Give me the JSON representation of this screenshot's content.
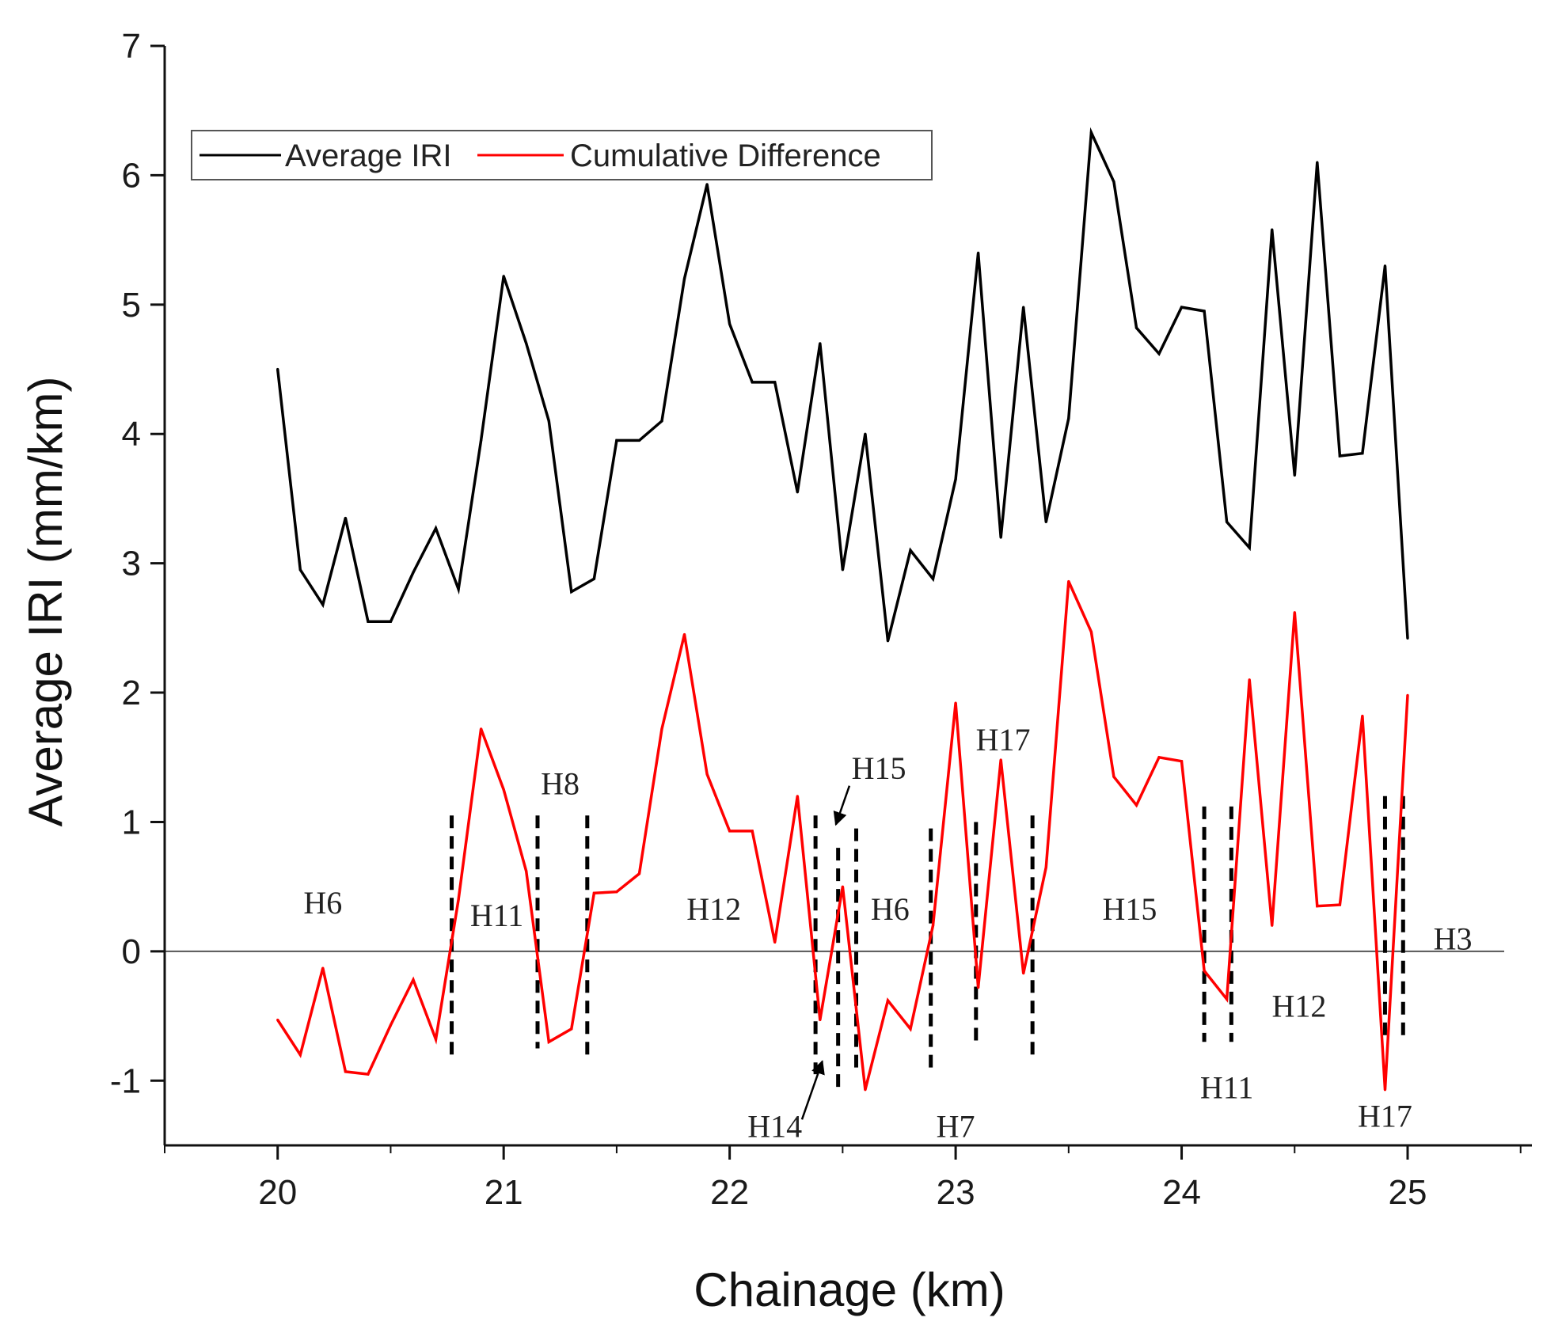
{
  "chart_data": {
    "type": "line",
    "xlabel": "Chainage (km)",
    "ylabel": "Average IRI (mm/km)",
    "xlim": [
      19.5,
      25.55
    ],
    "ylim": [
      -1.5,
      7
    ],
    "x_ticks": [
      20,
      21,
      22,
      23,
      24,
      25
    ],
    "y_ticks": [
      -1,
      0,
      1,
      2,
      3,
      4,
      5,
      6,
      7
    ],
    "legend_position": "top-left",
    "zero_line": true,
    "series": [
      {
        "name": "Average IRI",
        "color": "#000000",
        "x": [
          20.0,
          20.1,
          20.2,
          20.3,
          20.4,
          20.5,
          20.6,
          20.7,
          20.8,
          20.9,
          21.0,
          21.1,
          21.2,
          21.3,
          21.4,
          21.5,
          21.6,
          21.7,
          21.8,
          21.9,
          22.0,
          22.1,
          22.2,
          22.3,
          22.4,
          22.5,
          22.6,
          22.7,
          22.8,
          22.9,
          23.0,
          23.1,
          23.2,
          23.3,
          23.4,
          23.5,
          23.6,
          23.7,
          23.8,
          23.9,
          24.0,
          24.1,
          24.2,
          24.3,
          24.4,
          24.5,
          24.6,
          24.7,
          24.8,
          24.9,
          25.0
        ],
        "y": [
          4.5,
          2.95,
          2.68,
          3.35,
          2.55,
          2.55,
          2.93,
          3.27,
          2.8,
          3.95,
          5.22,
          4.7,
          4.1,
          2.78,
          2.88,
          3.95,
          3.95,
          4.1,
          5.2,
          5.93,
          4.85,
          4.4,
          4.4,
          3.55,
          4.7,
          2.95,
          4.0,
          2.4,
          3.1,
          2.88,
          3.65,
          5.4,
          3.2,
          4.98,
          3.32,
          4.12,
          6.33,
          5.95,
          4.82,
          4.62,
          4.98,
          4.95,
          3.32,
          3.12,
          5.58,
          3.68,
          6.1,
          3.83,
          3.85,
          5.3,
          2.42
        ]
      },
      {
        "name": "Cumulative Difference",
        "color": "#ff0000",
        "x": [
          20.0,
          20.1,
          20.2,
          20.3,
          20.4,
          20.5,
          20.6,
          20.7,
          20.8,
          20.9,
          21.0,
          21.1,
          21.2,
          21.3,
          21.4,
          21.5,
          21.6,
          21.7,
          21.8,
          21.9,
          22.0,
          22.1,
          22.2,
          22.3,
          22.4,
          22.5,
          22.6,
          22.7,
          22.8,
          22.9,
          23.0,
          23.1,
          23.2,
          23.3,
          23.4,
          23.5,
          23.6,
          23.7,
          23.8,
          23.9,
          24.0,
          24.1,
          24.2,
          24.3,
          24.4,
          24.5,
          24.6,
          24.7,
          24.8,
          24.9,
          25.0
        ],
        "y": [
          -0.53,
          -0.8,
          -0.13,
          -0.93,
          -0.95,
          -0.57,
          -0.22,
          -0.68,
          0.4,
          1.72,
          1.25,
          0.62,
          -0.7,
          -0.6,
          0.45,
          0.46,
          0.6,
          1.72,
          2.45,
          1.37,
          0.93,
          0.93,
          0.07,
          1.2,
          -0.53,
          0.5,
          -1.07,
          -0.38,
          -0.6,
          0.2,
          1.92,
          -0.28,
          1.48,
          -0.17,
          0.65,
          2.86,
          2.47,
          1.35,
          1.13,
          1.5,
          1.47,
          -0.15,
          -0.37,
          2.1,
          0.2,
          2.62,
          0.35,
          0.36,
          1.82,
          -1.07,
          1.98
        ]
      }
    ],
    "segment_boundaries": [
      {
        "x": 20.77,
        "y_min": -0.8,
        "y_max": 1.05
      },
      {
        "x": 21.15,
        "y_min": -0.75,
        "y_max": 1.05
      },
      {
        "x": 21.37,
        "y_min": -0.8,
        "y_max": 1.05
      },
      {
        "x": 22.38,
        "y_min": -0.95,
        "y_max": 1.05
      },
      {
        "x": 22.48,
        "y_min": -1.1,
        "y_max": 0.8
      },
      {
        "x": 22.56,
        "y_min": -0.95,
        "y_max": 0.95
      },
      {
        "x": 22.89,
        "y_min": -0.95,
        "y_max": 0.95
      },
      {
        "x": 23.09,
        "y_min": -0.75,
        "y_max": 1.0
      },
      {
        "x": 23.34,
        "y_min": -0.8,
        "y_max": 1.05
      },
      {
        "x": 24.1,
        "y_min": -0.7,
        "y_max": 1.12
      },
      {
        "x": 24.22,
        "y_min": -0.7,
        "y_max": 1.12
      },
      {
        "x": 24.9,
        "y_min": -0.65,
        "y_max": 1.2
      },
      {
        "x": 24.98,
        "y_min": -0.65,
        "y_max": 1.2
      }
    ],
    "annotations": [
      {
        "text": "H6",
        "x": 20.2,
        "y": 0.38
      },
      {
        "text": "H11",
        "x": 20.97,
        "y": 0.28
      },
      {
        "text": "H8",
        "x": 21.25,
        "y": 1.3
      },
      {
        "text": "H12",
        "x": 21.93,
        "y": 0.33
      },
      {
        "text": "H15",
        "x": 22.66,
        "y": 1.42
      },
      {
        "text": "H14",
        "x": 22.2,
        "y": -1.35
      },
      {
        "text": "H6",
        "x": 22.71,
        "y": 0.33
      },
      {
        "text": "H17",
        "x": 23.21,
        "y": 1.64
      },
      {
        "text": "H7",
        "x": 23.0,
        "y": -1.35
      },
      {
        "text": "H15",
        "x": 23.77,
        "y": 0.33
      },
      {
        "text": "H11",
        "x": 24.2,
        "y": -1.05
      },
      {
        "text": "H12",
        "x": 24.52,
        "y": -0.42
      },
      {
        "text": "H17",
        "x": 24.9,
        "y": -1.27
      },
      {
        "text": "H3",
        "x": 25.2,
        "y": 0.1
      }
    ],
    "pointer_arrows": [
      {
        "label": "H15",
        "from": [
          22.53,
          1.28
        ],
        "to": [
          22.47,
          0.98
        ]
      },
      {
        "label": "H14",
        "from": [
          22.32,
          -1.3
        ],
        "to": [
          22.41,
          -0.85
        ]
      }
    ]
  }
}
